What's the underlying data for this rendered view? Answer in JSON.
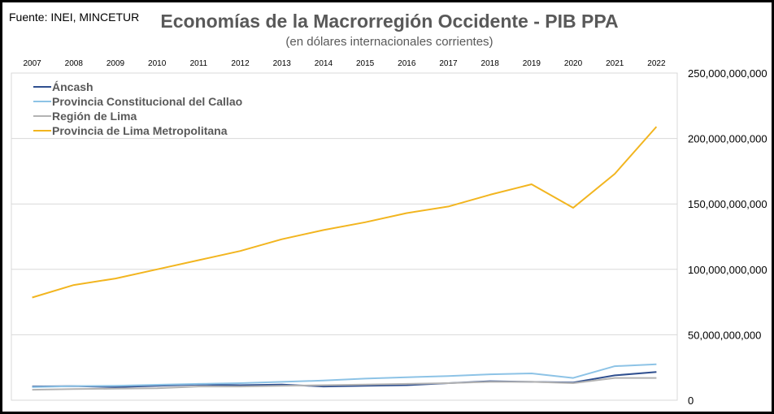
{
  "source": "Fuente: INEI, MINCETUR",
  "chart_data": {
    "type": "line",
    "title": "Economías de la Macrorregión Occidente - PIB PPA",
    "subtitle": "(en dólares internacionales corrientes)",
    "x": [
      "2007",
      "2008",
      "2009",
      "2010",
      "2011",
      "2012",
      "2013",
      "2014",
      "2015",
      "2016",
      "2017",
      "2018",
      "2019",
      "2020",
      "2021",
      "2022"
    ],
    "yticks": [
      "0",
      "50,000,000,000",
      "100,000,000,000",
      "150,000,000,000",
      "200,000,000,000",
      "250,000,000,000"
    ],
    "ylim": [
      0,
      250000000000
    ],
    "grid": true,
    "legend_position": "top-left",
    "series": [
      {
        "name": "Áncash",
        "color": "#2f4f8f",
        "values": [
          10500000000,
          10800000000,
          10000000000,
          11000000000,
          12000000000,
          11500000000,
          12000000000,
          10500000000,
          11000000000,
          11500000000,
          13000000000,
          14500000000,
          14000000000,
          13500000000,
          19000000000,
          21500000000
        ]
      },
      {
        "name": "Provincia Constitucional del Callao",
        "color": "#8dc3e6",
        "values": [
          10000000000,
          10800000000,
          11000000000,
          11800000000,
          12500000000,
          13000000000,
          14000000000,
          15000000000,
          16500000000,
          17500000000,
          18500000000,
          19800000000,
          20500000000,
          17000000000,
          26000000000,
          27500000000
        ]
      },
      {
        "name": "Región de Lima",
        "color": "#b3b3b3",
        "values": [
          8000000000,
          8500000000,
          8800000000,
          9200000000,
          10500000000,
          10500000000,
          11000000000,
          11500000000,
          12000000000,
          12500000000,
          13000000000,
          14000000000,
          14000000000,
          13000000000,
          17000000000,
          17000000000
        ]
      },
      {
        "name": "Provincia de Lima Metropolitana",
        "color": "#f2b51f",
        "values": [
          78500000000,
          88000000000,
          93000000000,
          100000000000,
          107000000000,
          114000000000,
          123000000000,
          130000000000,
          136000000000,
          143000000000,
          148000000000,
          157000000000,
          165000000000,
          147000000000,
          173000000000,
          209000000000
        ]
      }
    ]
  }
}
